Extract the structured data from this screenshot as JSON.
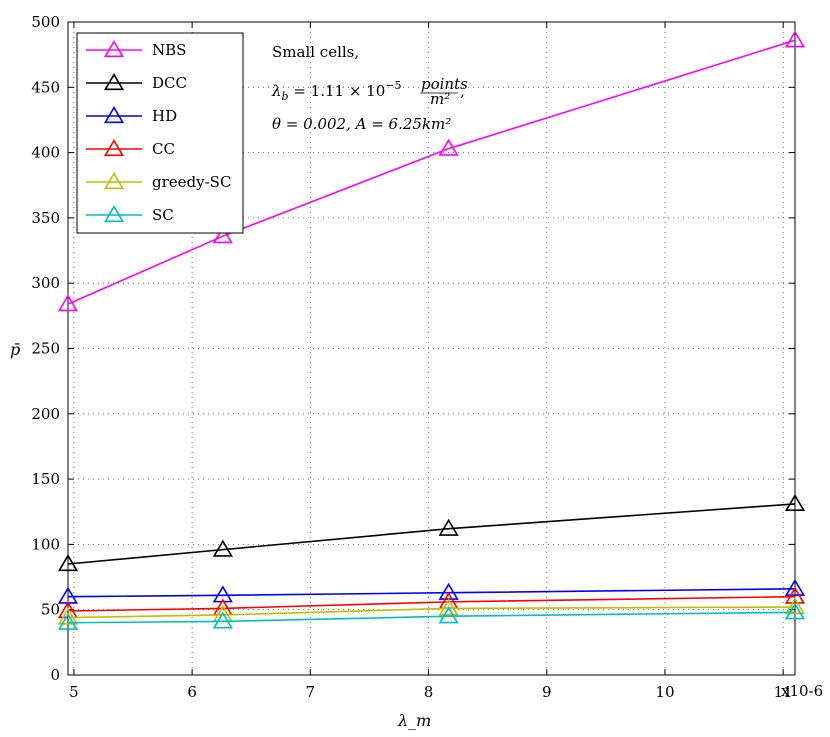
{
  "chart_data": {
    "type": "line",
    "xlabel": "λ_m",
    "ylabel": "p̄",
    "x_exponent": "x10-6",
    "xlim": [
      4.95,
      11.1
    ],
    "ylim": [
      0,
      500
    ],
    "xticks": [
      5,
      6,
      7,
      8,
      9,
      10,
      11
    ],
    "yticks": [
      0,
      50,
      100,
      150,
      200,
      250,
      300,
      350,
      400,
      450,
      500
    ],
    "grid": true,
    "legend_position": "top-left",
    "x": [
      4.95,
      6.26,
      8.17,
      11.1
    ],
    "series": [
      {
        "name": "NBS",
        "color": "#ff00ff",
        "values": [
          284,
          336,
          403,
          486
        ]
      },
      {
        "name": "DCC",
        "color": "#000000",
        "values": [
          85,
          96,
          112,
          131
        ]
      },
      {
        "name": "HD",
        "color": "#0000ff",
        "values": [
          60,
          61,
          63,
          66
        ]
      },
      {
        "name": "CC",
        "color": "#ff0000",
        "values": [
          49,
          51,
          56,
          60
        ]
      },
      {
        "name": "greedy-SC",
        "color": "#bfbf00",
        "values": [
          44,
          46,
          51,
          52
        ]
      },
      {
        "name": "SC",
        "color": "#00bfbf",
        "values": [
          40,
          41,
          45,
          48
        ]
      }
    ],
    "annotation": {
      "line1": "Small cells,",
      "line2_main": "λ",
      "line2_sub": "b",
      "line2_rest": " = 1.11 × 10",
      "line2_exp": "−5",
      "line2_frac_num": "points",
      "line2_frac_den": "m²",
      "line2_tail": ",",
      "line3": "θ = 0.002, A = 6.25km²"
    }
  }
}
